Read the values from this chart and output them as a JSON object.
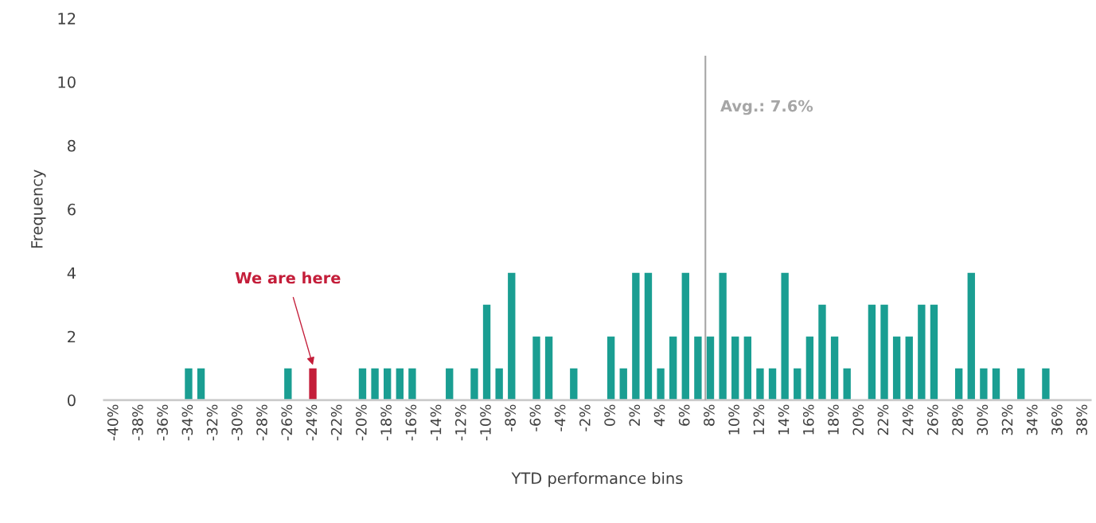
{
  "chart_data": {
    "type": "bar",
    "xlabel": "YTD performance bins",
    "ylabel": "Frequency",
    "x": [
      -34,
      -33,
      -26,
      -24,
      -20,
      -19,
      -18,
      -17,
      -16,
      -13,
      -11,
      -10,
      -9,
      -8,
      -6,
      -5,
      -3,
      0,
      1,
      2,
      3,
      4,
      5,
      6,
      7,
      8,
      9,
      10,
      11,
      12,
      13,
      14,
      15,
      16,
      17,
      18,
      19,
      21,
      22,
      23,
      24,
      25,
      26,
      28,
      29,
      30,
      31,
      33,
      35
    ],
    "values": [
      1,
      1,
      1,
      1,
      1,
      1,
      1,
      1,
      1,
      1,
      1,
      3,
      1,
      4,
      2,
      2,
      1,
      2,
      1,
      4,
      4,
      1,
      2,
      4,
      2,
      2,
      4,
      2,
      2,
      1,
      1,
      4,
      1,
      2,
      3,
      2,
      1,
      3,
      3,
      2,
      2,
      3,
      3,
      1,
      4,
      1,
      1,
      1,
      1
    ],
    "colors": [
      "#1a9e92",
      "#1a9e92",
      "#1a9e92",
      "#c41e3a",
      "#1a9e92",
      "#1a9e92",
      "#1a9e92",
      "#1a9e92",
      "#1a9e92",
      "#1a9e92",
      "#1a9e92",
      "#1a9e92",
      "#1a9e92",
      "#1a9e92",
      "#1a9e92",
      "#1a9e92",
      "#1a9e92",
      "#1a9e92",
      "#1a9e92",
      "#1a9e92",
      "#1a9e92",
      "#1a9e92",
      "#1a9e92",
      "#1a9e92",
      "#1a9e92",
      "#1a9e92",
      "#1a9e92",
      "#1a9e92",
      "#1a9e92",
      "#1a9e92",
      "#1a9e92",
      "#1a9e92",
      "#1a9e92",
      "#1a9e92",
      "#1a9e92",
      "#1a9e92",
      "#1a9e92",
      "#1a9e92",
      "#1a9e92",
      "#1a9e92",
      "#1a9e92",
      "#1a9e92",
      "#1a9e92",
      "#1a9e92",
      "#1a9e92",
      "#1a9e92",
      "#1a9e92",
      "#1a9e92",
      "#1a9e92"
    ],
    "xlim": [
      -40.8,
      38.6
    ],
    "xticks": [
      {
        "value": -40,
        "label": "-40%"
      },
      {
        "value": -38,
        "label": "-38%"
      },
      {
        "value": -36,
        "label": "-36%"
      },
      {
        "value": -34,
        "label": "-34%"
      },
      {
        "value": -32,
        "label": "-32%"
      },
      {
        "value": -30,
        "label": "-30%"
      },
      {
        "value": -28,
        "label": "-28%"
      },
      {
        "value": -26,
        "label": "-26%"
      },
      {
        "value": -24,
        "label": "-24%"
      },
      {
        "value": -22,
        "label": "-22%"
      },
      {
        "value": -20,
        "label": "-20%"
      },
      {
        "value": -18,
        "label": "-18%"
      },
      {
        "value": -16,
        "label": "-16%"
      },
      {
        "value": -14,
        "label": "-14%"
      },
      {
        "value": -12,
        "label": "-12%"
      },
      {
        "value": -10,
        "label": "-10%"
      },
      {
        "value": -8,
        "label": "-8%"
      },
      {
        "value": -6,
        "label": "-6%"
      },
      {
        "value": -4,
        "label": "-4%"
      },
      {
        "value": -2,
        "label": "-2%"
      },
      {
        "value": 0,
        "label": "0%"
      },
      {
        "value": 2,
        "label": "2%"
      },
      {
        "value": 4,
        "label": "4%"
      },
      {
        "value": 6,
        "label": "6%"
      },
      {
        "value": 8,
        "label": "8%"
      },
      {
        "value": 10,
        "label": "10%"
      },
      {
        "value": 12,
        "label": "12%"
      },
      {
        "value": 14,
        "label": "14%"
      },
      {
        "value": 16,
        "label": "16%"
      },
      {
        "value": 18,
        "label": "18%"
      },
      {
        "value": 20,
        "label": "20%"
      },
      {
        "value": 22,
        "label": "22%"
      },
      {
        "value": 24,
        "label": "24%"
      },
      {
        "value": 26,
        "label": "26%"
      },
      {
        "value": 28,
        "label": "28%"
      },
      {
        "value": 30,
        "label": "30%"
      },
      {
        "value": 32,
        "label": "32%"
      },
      {
        "value": 34,
        "label": "34%"
      },
      {
        "value": 36,
        "label": "36%"
      },
      {
        "value": 38,
        "label": "38%"
      }
    ],
    "ylim": [
      0,
      12
    ],
    "yticks": [
      0,
      2,
      4,
      6,
      8,
      10,
      12
    ],
    "grid": false,
    "ref_lines": [
      {
        "axis": "x",
        "value": 7.6,
        "label": "Avg.: 7.6%",
        "color": "#a6a6a6"
      }
    ],
    "annotations": [
      {
        "text": "We are here",
        "x": -24,
        "y": 1
      }
    ]
  }
}
